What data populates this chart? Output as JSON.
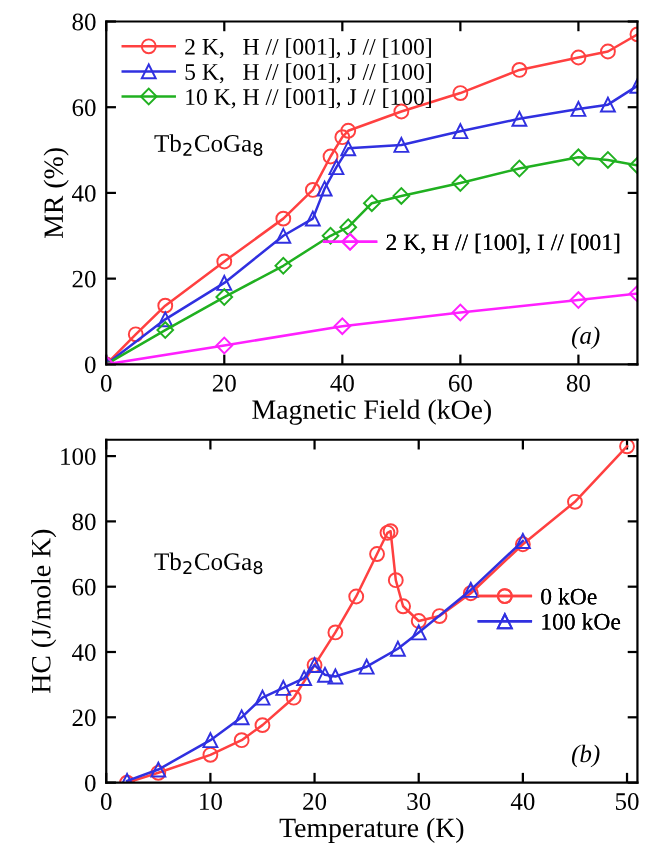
{
  "chart_data": [
    {
      "type": "line",
      "xlabel": "Magnetic Field (kOe)",
      "ylabel": "MR (%)",
      "xlim": [
        0,
        90
      ],
      "ylim": [
        0,
        80
      ],
      "xticks": [
        0,
        20,
        40,
        60,
        80
      ],
      "yticks": [
        0,
        20,
        40,
        60,
        80
      ],
      "legend": "top left",
      "annotations": [
        "Tb$_{2}$CoGa$_{8}$",
        "(a)"
      ],
      "series": [
        {
          "name": "2 K,   H // [001], J // [100]",
          "color": "#ff4040",
          "marker": "circle",
          "x": [
            0,
            5,
            10,
            20,
            30,
            35,
            38,
            40,
            41,
            50,
            60,
            70,
            80,
            85,
            90
          ],
          "values": [
            0,
            7,
            13.7,
            24,
            34,
            40.7,
            48.5,
            53,
            54.5,
            59,
            63.3,
            68.7,
            71.6,
            73,
            77
          ]
        },
        {
          "name": "5 K,   H // [001], J // [100]",
          "color": "#3030e0",
          "marker": "triangle",
          "x": [
            0,
            10,
            20,
            30,
            35,
            37,
            39,
            41,
            50,
            60,
            70,
            80,
            85,
            90
          ],
          "values": [
            0,
            10.5,
            19,
            30,
            34,
            41,
            46,
            50.4,
            51.2,
            54.4,
            57.3,
            59.6,
            60.6,
            65
          ]
        },
        {
          "name": "10 K, H // [001], J // [100]",
          "color": "#20b020",
          "marker": "diamond",
          "x": [
            0,
            10,
            20,
            30,
            38,
            41,
            45,
            50,
            60,
            70,
            80,
            85,
            90
          ],
          "values": [
            0,
            8,
            15.7,
            23,
            30,
            32,
            37.6,
            39.3,
            42.3,
            45.7,
            48.3,
            47.7,
            46.4
          ]
        },
        {
          "name": "2 K, H // [100], I // [001]",
          "color": "#ff20ff",
          "marker": "diamond",
          "x": [
            0,
            20,
            40,
            60,
            80,
            90
          ],
          "values": [
            0,
            4.4,
            8.9,
            12.1,
            15,
            16.5
          ]
        }
      ]
    },
    {
      "type": "line",
      "xlabel": "Temperature (K)",
      "ylabel": "HC (J/mole K)",
      "xlim": [
        0,
        51
      ],
      "ylim": [
        0,
        105
      ],
      "xticks": [
        0,
        10,
        20,
        30,
        40,
        50
      ],
      "yticks": [
        0,
        20,
        40,
        60,
        80,
        100
      ],
      "legend": "center right",
      "annotations": [
        "Tb$_{2}$CoGa$_{8}$",
        "(b)"
      ],
      "series": [
        {
          "name": "0 kOe",
          "color": "#ff4040",
          "marker": "circle",
          "x": [
            2,
            5,
            10,
            13,
            15,
            18,
            20,
            22,
            24,
            26,
            27,
            27.3,
            27.8,
            28.5,
            30,
            32,
            35,
            40,
            45,
            50
          ],
          "values": [
            0,
            3,
            8.5,
            13,
            17.6,
            26,
            36,
            46,
            57,
            70,
            76.5,
            77,
            62,
            54,
            49.5,
            51,
            58,
            73,
            86,
            103
          ]
        },
        {
          "name": "100 kOe",
          "color": "#3030e0",
          "marker": "triangle",
          "x": [
            2,
            5,
            10,
            13,
            15,
            17,
            19,
            20,
            21,
            22,
            25,
            28,
            30,
            35,
            40
          ],
          "values": [
            0.5,
            4,
            13,
            20,
            26,
            29,
            32,
            36,
            33,
            32.5,
            35.5,
            41,
            46,
            59,
            74
          ]
        }
      ]
    }
  ]
}
